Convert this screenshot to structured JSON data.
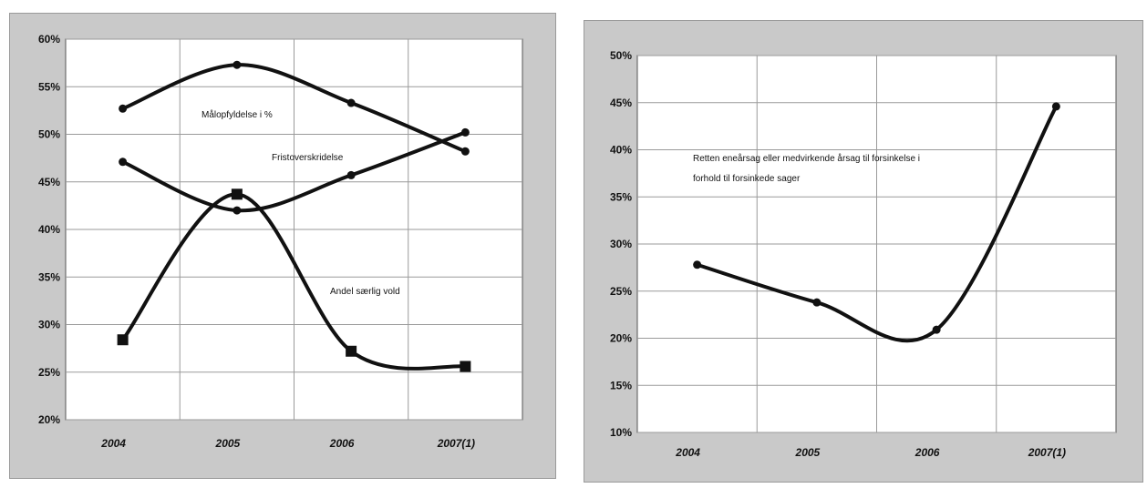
{
  "chart_data": [
    {
      "type": "line",
      "categories": [
        "2004",
        "2005",
        "2006",
        "2007(1)"
      ],
      "ylim": [
        0.2,
        0.6
      ],
      "yticks": [
        "60%",
        "55%",
        "50%",
        "45%",
        "40%",
        "35%",
        "30%",
        "25%",
        "20%"
      ],
      "series": [
        {
          "name": "Målopfyldelse i %",
          "values": [
            0.527,
            0.573,
            0.533,
            0.482
          ],
          "marker": "circle"
        },
        {
          "name": "Fristoverskridelse",
          "values": [
            0.471,
            0.42,
            0.457,
            0.502
          ],
          "marker": "circle"
        },
        {
          "name": "Andel særlig vold",
          "values": [
            0.284,
            0.437,
            0.272,
            0.256
          ],
          "marker": "square"
        }
      ],
      "grid": true
    },
    {
      "type": "line",
      "categories": [
        "2004",
        "2005",
        "2006",
        "2007(1)"
      ],
      "ylim": [
        0.1,
        0.5
      ],
      "yticks": [
        "50%",
        "45%",
        "40%",
        "35%",
        "30%",
        "25%",
        "20%",
        "15%",
        "10%"
      ],
      "series": [
        {
          "name": "Retten eneårsag eller medvirkende årsag til forsinkelse i forhold til forsinkede sager",
          "values": [
            0.278,
            0.238,
            0.209,
            0.446
          ],
          "marker": "circle"
        }
      ],
      "grid": true
    }
  ],
  "annotations": {
    "left": [
      "Målopfyldelse i %",
      "Fristoverskridelse",
      "Andel særlig vold"
    ],
    "right": [
      "Retten eneårsag eller medvirkende årsag til forsinkelse i",
      "forhold til forsinkede sager"
    ]
  },
  "colors": {
    "panel": "#c9c9c9",
    "plot": "#ffffff",
    "line": "#111111",
    "grid": "#9a9a9a"
  }
}
